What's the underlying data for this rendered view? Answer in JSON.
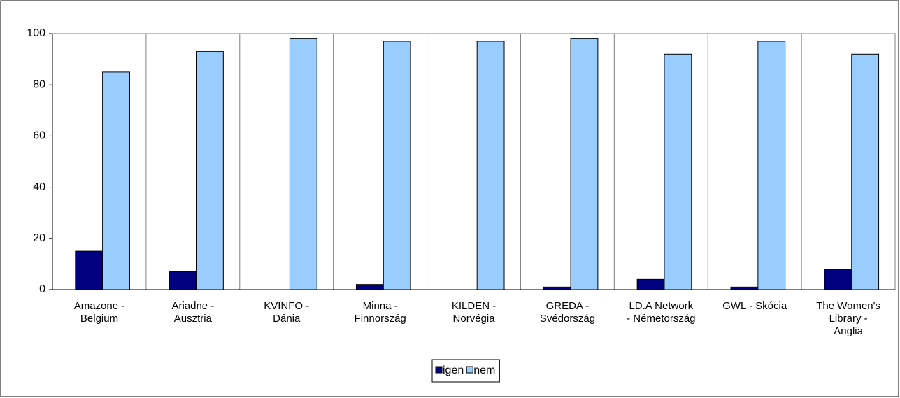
{
  "chart_data": {
    "type": "bar",
    "categories": [
      "Amazone -\nBelgium",
      "Ariadne -\nAusztria",
      "KVINFO -\nDánia",
      "Minna -\nFinnország",
      "KILDEN -\nNorvégia",
      "GREDA -\nSvédország",
      "LD.A Network\n- Németország",
      "GWL - Skócia",
      "The Women's\nLibrary -\nAnglia"
    ],
    "series": [
      {
        "name": "igen",
        "color": "#000080",
        "values": [
          15,
          7,
          0,
          2,
          0,
          1,
          4,
          1,
          8
        ]
      },
      {
        "name": "nem",
        "color": "#99ccff",
        "values": [
          85,
          93,
          98,
          97,
          97,
          98,
          92,
          97,
          92
        ]
      }
    ],
    "ylim": [
      0,
      100
    ],
    "yticks": [
      0,
      20,
      40,
      60,
      80,
      100
    ],
    "legend": "bottom"
  }
}
